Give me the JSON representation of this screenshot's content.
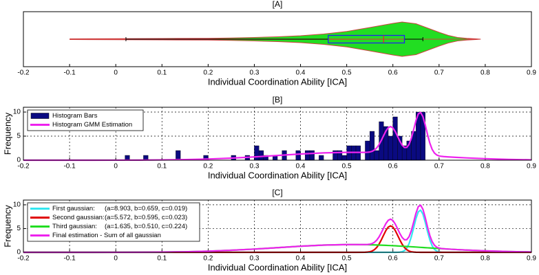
{
  "chart_data": [
    {
      "type": "violin",
      "title": "[A]",
      "xlabel": "Individual Coordination Ability [ICA]",
      "xlim": [
        -0.2,
        0.9
      ],
      "xticks": [
        -0.2,
        -0.1,
        0,
        0.1,
        0.2,
        0.3,
        0.4,
        0.5,
        0.6,
        0.7,
        0.8,
        0.9
      ],
      "violin": {
        "x": [
          -0.1,
          0,
          0.1,
          0.2,
          0.25,
          0.3,
          0.35,
          0.4,
          0.45,
          0.5,
          0.55,
          0.6,
          0.62,
          0.65,
          0.68,
          0.7,
          0.72,
          0.74,
          0.76,
          0.78,
          0.79
        ],
        "density": [
          0.02,
          0.03,
          0.04,
          0.05,
          0.07,
          0.1,
          0.14,
          0.2,
          0.3,
          0.45,
          0.68,
          0.92,
          1.0,
          0.9,
          0.6,
          0.4,
          0.22,
          0.1,
          0.05,
          0.02,
          0
        ],
        "color": "#22dd22",
        "edge_color": "#d04040"
      },
      "box": {
        "whisker_low": 0.022,
        "q1": 0.46,
        "median": 0.58,
        "q3": 0.625,
        "whisker_high": 0.665,
        "color": "#2222ee",
        "median_color": "#ee2222",
        "whisker_color": "#000000"
      }
    },
    {
      "type": "histogram",
      "title": "[B]",
      "xlabel": "Individual Coordination Ability [ICA]",
      "ylabel": "Frequency",
      "xlim": [
        -0.2,
        0.9
      ],
      "xticks": [
        -0.2,
        -0.1,
        0,
        0.1,
        0.2,
        0.3,
        0.4,
        0.5,
        0.6,
        0.7,
        0.8,
        0.9
      ],
      "ylim": [
        0,
        11
      ],
      "yticks": [
        0,
        5,
        10
      ],
      "grid": true,
      "legend": "upper left",
      "bins": [
        0.02,
        0.03,
        0.04,
        0.05,
        0.06,
        0.07,
        0.08,
        0.09,
        0.1,
        0.11,
        0.12,
        0.13,
        0.14,
        0.15,
        0.16,
        0.17,
        0.18,
        0.19,
        0.2,
        0.21,
        0.22,
        0.23,
        0.24,
        0.25,
        0.26,
        0.27,
        0.28,
        0.29,
        0.3,
        0.31,
        0.32,
        0.33,
        0.34,
        0.35,
        0.36,
        0.37,
        0.38,
        0.39,
        0.4,
        0.41,
        0.42,
        0.43,
        0.44,
        0.45,
        0.46,
        0.47,
        0.48,
        0.49,
        0.5,
        0.51,
        0.52,
        0.53,
        0.54,
        0.55,
        0.56,
        0.57,
        0.58,
        0.59,
        0.6,
        0.61,
        0.62,
        0.63,
        0.64,
        0.65,
        0.66,
        0.67
      ],
      "series": [
        {
          "name": "Histogram Bars",
          "color": "#0a0a80",
          "values": [
            1,
            0,
            0,
            0,
            1,
            0,
            0,
            0,
            0,
            0,
            0,
            2,
            0,
            0,
            0,
            0,
            0,
            1,
            0,
            0,
            0,
            0,
            0,
            1,
            0,
            0,
            1,
            0,
            3,
            2,
            1,
            0,
            1,
            0,
            2,
            0,
            0,
            2,
            0,
            2,
            2,
            0,
            1,
            0,
            0,
            2,
            2,
            1,
            3,
            3,
            3,
            0,
            4,
            6,
            2,
            8,
            7,
            5,
            9,
            5,
            3,
            4,
            6,
            10,
            10
          ]
        }
      ],
      "lines": [
        {
          "name": "Histogram GMM Estimation",
          "color": "#ee22ee",
          "x": [
            -0.2,
            -0.15,
            -0.1,
            -0.05,
            0,
            0.05,
            0.1,
            0.15,
            0.2,
            0.25,
            0.3,
            0.35,
            0.4,
            0.45,
            0.5,
            0.52,
            0.54,
            0.545,
            0.55,
            0.555,
            0.56,
            0.565,
            0.57,
            0.575,
            0.58,
            0.585,
            0.59,
            0.595,
            0.6,
            0.605,
            0.61,
            0.615,
            0.62,
            0.625,
            0.63,
            0.635,
            0.64,
            0.645,
            0.65,
            0.655,
            0.66,
            0.665,
            0.67,
            0.675,
            0.68,
            0.685,
            0.69,
            0.695,
            0.7,
            0.705,
            0.71,
            0.72,
            0.74,
            0.76,
            0.8,
            0.85,
            0.9
          ],
          "values": [
            0,
            0,
            0,
            0,
            0.01,
            0.02,
            0.06,
            0.12,
            0.24,
            0.43,
            0.68,
            0.98,
            1.29,
            1.52,
            1.63,
            1.63,
            1.63,
            1.65,
            1.7,
            1.84,
            2.11,
            2.56,
            3.23,
            4.12,
            5.12,
            6.07,
            6.75,
            6.99,
            6.7,
            5.98,
            4.99,
            3.97,
            3.13,
            2.64,
            2.65,
            3.28,
            4.57,
            6.36,
            8.24,
            9.61,
            9.92,
            9.07,
            7.35,
            5.33,
            3.55,
            2.26,
            1.48,
            1.08,
            0.89,
            0.8,
            0.75,
            0.68,
            0.57,
            0.47,
            0.31,
            0.16,
            0.08
          ]
        }
      ]
    },
    {
      "type": "line",
      "title": "[C]",
      "xlabel": "Individual Coordination Ability [ICA]",
      "ylabel": "Frequency",
      "xlim": [
        -0.2,
        0.9
      ],
      "xticks": [
        -0.2,
        -0.1,
        0,
        0.1,
        0.2,
        0.3,
        0.4,
        0.5,
        0.6,
        0.7,
        0.8,
        0.9
      ],
      "ylim": [
        0,
        11
      ],
      "yticks": [
        0,
        5,
        10
      ],
      "grid": true,
      "legend": "upper left",
      "x": [
        -0.2,
        -0.15,
        -0.1,
        -0.05,
        0,
        0.05,
        0.1,
        0.15,
        0.2,
        0.25,
        0.3,
        0.35,
        0.4,
        0.45,
        0.5,
        0.52,
        0.54,
        0.545,
        0.55,
        0.555,
        0.56,
        0.565,
        0.57,
        0.575,
        0.58,
        0.585,
        0.59,
        0.595,
        0.6,
        0.605,
        0.61,
        0.615,
        0.62,
        0.625,
        0.63,
        0.635,
        0.64,
        0.645,
        0.65,
        0.655,
        0.66,
        0.665,
        0.67,
        0.675,
        0.68,
        0.685,
        0.69,
        0.695,
        0.7,
        0.705,
        0.71,
        0.72,
        0.74,
        0.76,
        0.8,
        0.85,
        0.9
      ],
      "series": [
        {
          "name": "First gaussian:",
          "params": "(a=8.903, b=0.659, c=0.019)",
          "color": "#33e6f0",
          "values": [
            0,
            0,
            0,
            0,
            0,
            0,
            0,
            0,
            0,
            0,
            0,
            0,
            0,
            0,
            0,
            0,
            0,
            0,
            0,
            0,
            0,
            0,
            0,
            0,
            0,
            0,
            0,
            0,
            0,
            0,
            0.01,
            0.04,
            0.13,
            0.36,
            0.87,
            1.81,
            3.28,
            5.17,
            7.11,
            8.52,
            8.88,
            8.06,
            6.37,
            4.38,
            2.63,
            1.37,
            0.62,
            0.25,
            0.09,
            0.03,
            0.01,
            0,
            0,
            0,
            0,
            0,
            0
          ]
        },
        {
          "name": "Second gaussian:",
          "params": "(a=5.572, b=0.595, c=0.023)",
          "color": "#e00000",
          "values": [
            0,
            0,
            0,
            0,
            0,
            0,
            0,
            0,
            0,
            0,
            0,
            0,
            0,
            0,
            0,
            0,
            0.02,
            0.05,
            0.12,
            0.27,
            0.55,
            1.02,
            1.71,
            2.62,
            3.64,
            4.61,
            5.31,
            5.57,
            5.31,
            4.61,
            3.64,
            2.62,
            1.71,
            1.02,
            0.55,
            0.27,
            0.12,
            0.05,
            0.02,
            0.01,
            0,
            0,
            0,
            0,
            0,
            0,
            0,
            0,
            0,
            0,
            0,
            0,
            0,
            0,
            0,
            0,
            0
          ]
        },
        {
          "name": "Third gaussian:",
          "params": "(a=1.635, b=0.510, c=0.224)",
          "color": "#22dd22",
          "values": [
            0,
            0,
            0,
            0,
            0.01,
            0.02,
            0.06,
            0.12,
            0.24,
            0.43,
            0.68,
            0.98,
            1.29,
            1.52,
            1.63,
            1.63,
            1.61,
            1.6,
            1.58,
            1.57,
            1.56,
            1.54,
            1.52,
            1.5,
            1.48,
            1.46,
            1.44,
            1.42,
            1.39,
            1.37,
            1.34,
            1.31,
            1.29,
            1.26,
            1.23,
            1.2,
            1.17,
            1.14,
            1.11,
            1.08,
            1.04,
            1.01,
            0.98,
            0.95,
            0.92,
            0.89,
            0.86,
            0.83,
            0.8,
            0.77,
            0.74,
            0.68,
            0.57,
            0.47,
            0.31,
            0.16,
            0.08
          ]
        },
        {
          "name": "Final estimation - Sum of all gaussian",
          "color": "#ee22ee",
          "values": [
            0,
            0,
            0,
            0,
            0.01,
            0.02,
            0.06,
            0.12,
            0.24,
            0.43,
            0.68,
            0.98,
            1.29,
            1.52,
            1.63,
            1.63,
            1.63,
            1.65,
            1.7,
            1.84,
            2.11,
            2.56,
            3.23,
            4.12,
            5.12,
            6.07,
            6.75,
            6.99,
            6.7,
            5.98,
            4.99,
            3.97,
            3.13,
            2.64,
            2.65,
            3.28,
            4.57,
            6.36,
            8.24,
            9.61,
            9.92,
            9.07,
            7.35,
            5.33,
            3.55,
            2.26,
            1.48,
            1.08,
            0.89,
            0.8,
            0.75,
            0.68,
            0.57,
            0.47,
            0.31,
            0.16,
            0.08
          ]
        }
      ]
    }
  ]
}
